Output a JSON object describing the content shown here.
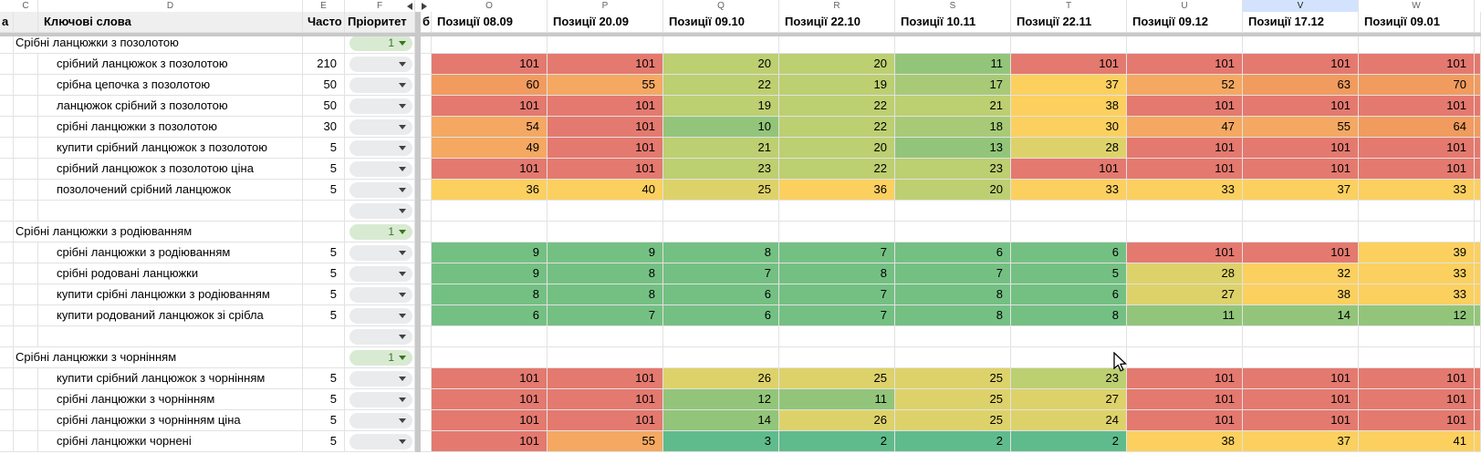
{
  "sheet": {
    "column_letters": [
      "C",
      "D",
      "E",
      "F",
      "O",
      "P",
      "Q",
      "R",
      "S",
      "T",
      "U",
      "V",
      "W"
    ],
    "selected_column_letter": "V",
    "header": {
      "left_partial": "а",
      "keywords": "Ключові слова",
      "frequency": "Часто",
      "priority": "Пріоритет",
      "hidden_sliver": "б",
      "positions": [
        "Позиції 08.09",
        "Позиції 20.09",
        "Позиції 09.10",
        "Позиції 22.10",
        "Позиції 10.11",
        "Позиції 22.11",
        "Позиції 09.12",
        "Позиції 17.12",
        "Позиції 09.01"
      ]
    },
    "groups": [
      {
        "name": "Срібні ланцюжки з позолотою",
        "priority": "1",
        "rows": [
          {
            "keyword": "срібний ланцюжок з позолотою",
            "freq": "210",
            "positions": [
              101,
              101,
              20,
              20,
              11,
              101,
              101,
              101,
              101
            ]
          },
          {
            "keyword": "срібна цепочка з позолотою",
            "freq": "50",
            "positions": [
              60,
              55,
              22,
              19,
              17,
              37,
              52,
              63,
              70
            ]
          },
          {
            "keyword": "ланцюжок срібний з позолотою",
            "freq": "50",
            "positions": [
              101,
              101,
              19,
              22,
              21,
              38,
              101,
              101,
              101
            ]
          },
          {
            "keyword": "срібні ланцюжки з позолотою",
            "freq": "30",
            "positions": [
              54,
              101,
              10,
              22,
              18,
              30,
              47,
              55,
              64
            ]
          },
          {
            "keyword": "купити срібний ланцюжок з позолотою",
            "freq": "5",
            "positions": [
              49,
              101,
              21,
              20,
              13,
              28,
              101,
              101,
              101
            ]
          },
          {
            "keyword": "срібний ланцюжок з позолотою ціна",
            "freq": "5",
            "positions": [
              101,
              101,
              23,
              22,
              23,
              101,
              101,
              101,
              101
            ]
          },
          {
            "keyword": "позолочений срібний ланцюжок",
            "freq": "5",
            "positions": [
              36,
              40,
              25,
              36,
              20,
              33,
              33,
              37,
              33
            ]
          }
        ]
      },
      {
        "name": "Срібні ланцюжки з родіюванням",
        "priority": "1",
        "rows": [
          {
            "keyword": "срібні ланцюжки з родіюванням",
            "freq": "5",
            "positions": [
              9,
              9,
              8,
              7,
              6,
              6,
              101,
              101,
              39
            ]
          },
          {
            "keyword": "срібні родовані ланцюжки",
            "freq": "5",
            "positions": [
              9,
              8,
              7,
              8,
              7,
              5,
              28,
              32,
              33
            ]
          },
          {
            "keyword": "купити срібні ланцюжки з родіюванням",
            "freq": "5",
            "positions": [
              8,
              8,
              6,
              7,
              8,
              6,
              27,
              38,
              33
            ]
          },
          {
            "keyword": "купити родований ланцюжок зі срібла",
            "freq": "5",
            "positions": [
              6,
              7,
              6,
              7,
              8,
              8,
              11,
              14,
              12
            ]
          }
        ]
      },
      {
        "name": "Срібні ланцюжки з чорнінням",
        "priority": "1",
        "rows": [
          {
            "keyword": "купити срібний ланцюжок з чорнінням",
            "freq": "5",
            "positions": [
              101,
              101,
              26,
              25,
              25,
              23,
              101,
              101,
              101
            ]
          },
          {
            "keyword": "срібні ланцюжки з чорнінням",
            "freq": "5",
            "positions": [
              101,
              101,
              12,
              11,
              25,
              27,
              101,
              101,
              101
            ]
          },
          {
            "keyword": "срібні ланцюжки з чорнінням ціна",
            "freq": "5",
            "positions": [
              101,
              101,
              14,
              26,
              25,
              24,
              101,
              101,
              101
            ]
          },
          {
            "keyword": "срібні ланцюжки чорнені",
            "freq": "5",
            "positions": [
              101,
              55,
              3,
              2,
              2,
              2,
              38,
              37,
              41
            ]
          }
        ]
      }
    ]
  },
  "colors": {
    "header_bg": "#efefef",
    "selected_letter_bg": "#d3e3fd",
    "gridline": "#e2e2e2",
    "divider": "#c9c9c9",
    "pill_gray": "#e9ebed",
    "pill_green": "#d9ead3",
    "pill_green_text": "#38761d",
    "position_scale": [
      {
        "max": 4,
        "color": "#5fbb8b"
      },
      {
        "max": 9,
        "color": "#74c083"
      },
      {
        "max": 14,
        "color": "#92c57a"
      },
      {
        "max": 18,
        "color": "#a8ca76"
      },
      {
        "max": 23,
        "color": "#bccf71"
      },
      {
        "max": 29,
        "color": "#ddd26a"
      },
      {
        "max": 44,
        "color": "#fbd05f"
      },
      {
        "max": 59,
        "color": "#f4a862"
      },
      {
        "max": 100,
        "color": "#f19b5e"
      },
      {
        "max": 9999,
        "color": "#e4796f"
      }
    ]
  }
}
